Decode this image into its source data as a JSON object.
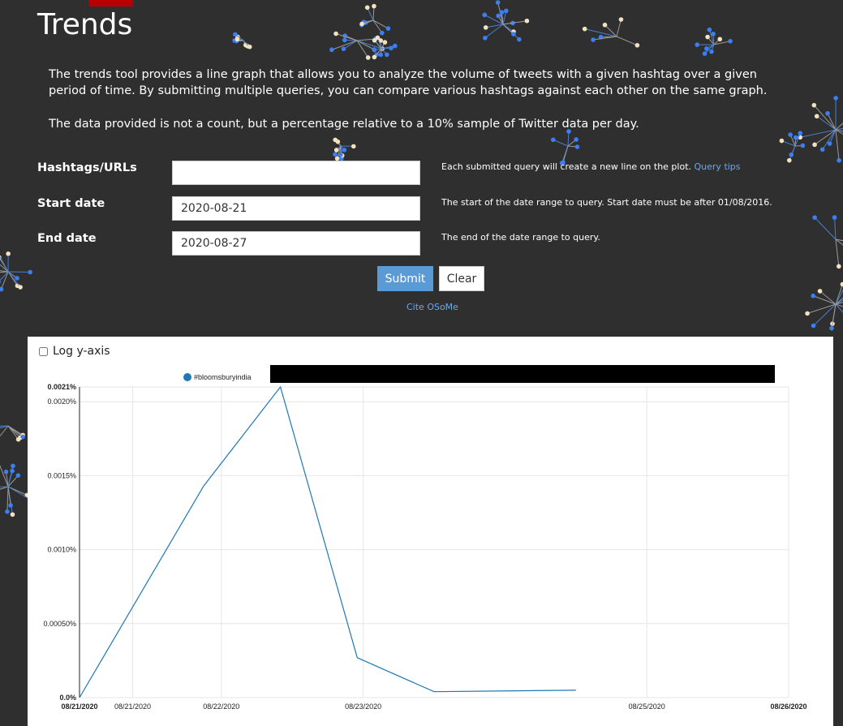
{
  "page": {
    "title": "Trends"
  },
  "intro": {
    "p1": "The trends tool provides a line graph that allows you to analyze the volume of tweets with a given hashtag over a given period of time. By submitting multiple queries, you can compare various hashtags against each other on the same graph.",
    "p2": "The data provided is not a count, but a percentage relative to a 10% sample of Twitter data per day."
  },
  "form": {
    "hashtags": {
      "label": "Hashtags/URLs",
      "value": "",
      "help": "Each submitted query will create a new line on the plot.",
      "help_link": "Query tips"
    },
    "start": {
      "label": "Start date",
      "value": "2020-08-21",
      "help": "The start of the date range to query. Start date must be after 01/08/2016."
    },
    "end": {
      "label": "End date",
      "value": "2020-08-27",
      "help": "The end of the date range to query."
    },
    "submit_label": "Submit",
    "clear_label": "Clear",
    "cite_label": "Cite OSoMe"
  },
  "chart_options": {
    "log_label": "Log y-axis",
    "log_checked": false
  },
  "chart_data": {
    "type": "line",
    "title": "",
    "xlabel": "",
    "ylabel": "",
    "ylim": [
      0,
      0.0021
    ],
    "grid": true,
    "legend": "top",
    "y_ticks": [
      {
        "value": 0,
        "label": "0.0%"
      },
      {
        "value": 0.0005,
        "label": "0.00050%"
      },
      {
        "value": 0.001,
        "label": "0.0010%"
      },
      {
        "value": 0.0015,
        "label": "0.0015%"
      },
      {
        "value": 0.002,
        "label": "0.0020%"
      },
      {
        "value": 0.0021,
        "label": "0.0021%"
      }
    ],
    "x_ticks": [
      {
        "x": "2020-08-21",
        "label": "08/21/2020",
        "bold": true
      },
      {
        "x": "2020-08-21 09:00",
        "label": "08/21/2020",
        "bold": false
      },
      {
        "x": "2020-08-22",
        "label": "08/22/2020",
        "bold": false
      },
      {
        "x": "2020-08-23",
        "label": "08/23/2020",
        "bold": false
      },
      {
        "x": "2020-08-25",
        "label": "08/25/2020",
        "bold": false
      },
      {
        "x": "2020-08-26",
        "label": "08/26/2020",
        "bold": true
      }
    ],
    "series": [
      {
        "name": "#bloomsburyindia",
        "color": "#1f77b4",
        "x": [
          "2020-08-21",
          "2020-08-21 21:00",
          "2020-08-22 10:00",
          "2020-08-22 23:00",
          "2020-08-23 12:00",
          "2020-08-24 12:00"
        ],
        "values": [
          0.0,
          0.00143,
          0.0021,
          0.00027,
          4e-05,
          5e-05
        ]
      }
    ]
  }
}
